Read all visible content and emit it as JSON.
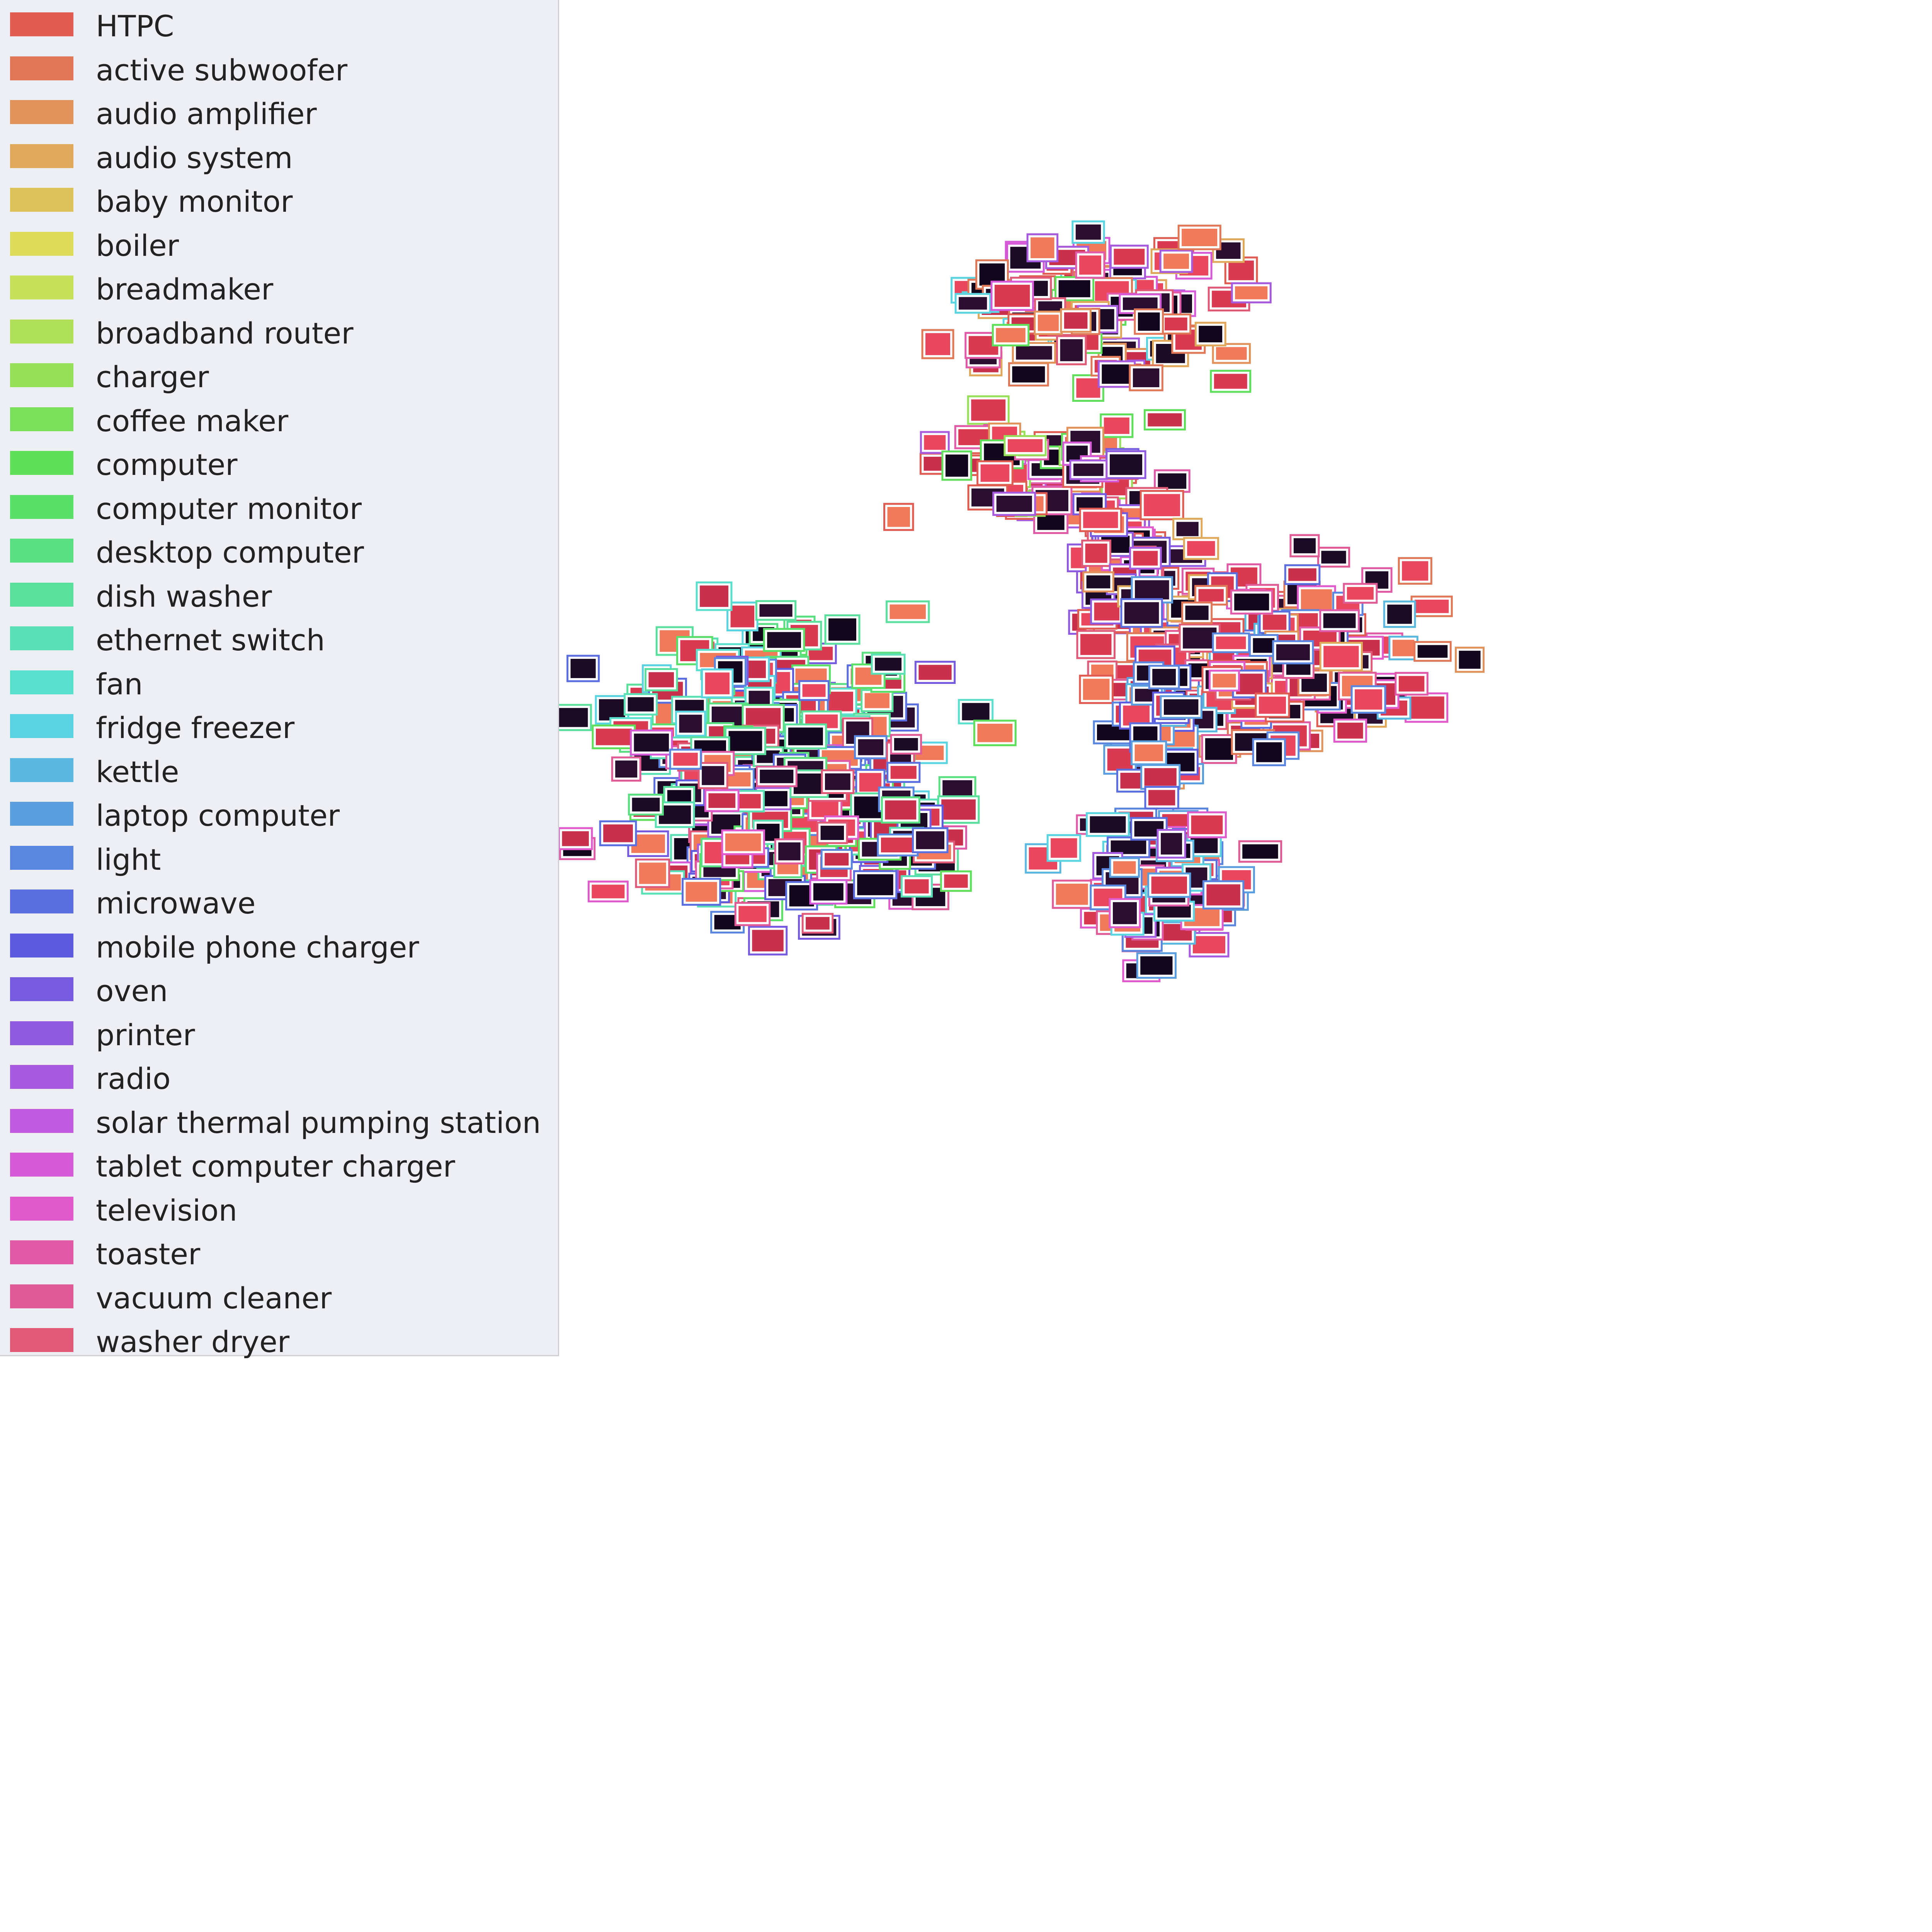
{
  "chart_data": {
    "type": "scatter",
    "title": "",
    "xlabel": "",
    "ylabel": "",
    "marker": "image-thumbnail",
    "legend_position": "upper-left",
    "grid": false,
    "xlim": [
      0,
      100
    ],
    "ylim": [
      0,
      100
    ],
    "legend": [
      {
        "label": "HTPC",
        "color": "#e05c52"
      },
      {
        "label": "active subwoofer",
        "color": "#e07858"
      },
      {
        "label": "audio amplifier",
        "color": "#e0925a"
      },
      {
        "label": "audio system",
        "color": "#e0a85a"
      },
      {
        "label": "baby monitor",
        "color": "#dcc25a"
      },
      {
        "label": "boiler",
        "color": "#dcdc5a"
      },
      {
        "label": "breadmaker",
        "color": "#c8e05a"
      },
      {
        "label": "broadband router",
        "color": "#b0e05a"
      },
      {
        "label": "charger",
        "color": "#96e05a"
      },
      {
        "label": "coffee maker",
        "color": "#7ae05a"
      },
      {
        "label": "computer",
        "color": "#60e05a"
      },
      {
        "label": "computer monitor",
        "color": "#5ae068"
      },
      {
        "label": "desktop computer",
        "color": "#5ae082"
      },
      {
        "label": "dish washer",
        "color": "#5ae09c"
      },
      {
        "label": "ethernet switch",
        "color": "#5ae0b4"
      },
      {
        "label": "fan",
        "color": "#5ae0cc"
      },
      {
        "label": "fridge freezer",
        "color": "#5ad4e0"
      },
      {
        "label": "kettle",
        "color": "#5ab8e0"
      },
      {
        "label": "laptop computer",
        "color": "#5a9ee0"
      },
      {
        "label": "light",
        "color": "#5a86e0"
      },
      {
        "label": "microwave",
        "color": "#5a6ee0"
      },
      {
        "label": "mobile phone charger",
        "color": "#5e5ae0"
      },
      {
        "label": "oven",
        "color": "#765ae0"
      },
      {
        "label": "printer",
        "color": "#8e5ae0"
      },
      {
        "label": "radio",
        "color": "#a65ae0"
      },
      {
        "label": "solar thermal pumping station",
        "color": "#c05ae0"
      },
      {
        "label": "tablet computer charger",
        "color": "#d65ad8"
      },
      {
        "label": "television",
        "color": "#e05acc"
      },
      {
        "label": "toaster",
        "color": "#e05aa8"
      },
      {
        "label": "vacuum cleaner",
        "color": "#e05a96"
      },
      {
        "label": "washer dryer",
        "color": "#e05a78"
      }
    ],
    "clusters": [
      {
        "center": [
          57,
          16
        ],
        "spread": [
          6,
          3.5
        ],
        "count": 120,
        "classes": [
          0,
          1,
          2,
          3,
          10,
          16,
          24,
          26,
          28,
          30
        ]
      },
      {
        "center": [
          54,
          24.5
        ],
        "spread": [
          5,
          2.5
        ],
        "count": 60,
        "classes": [
          0,
          2,
          8,
          10,
          24,
          26,
          28
        ]
      },
      {
        "center": [
          58,
          29
        ],
        "spread": [
          2.5,
          3.5
        ],
        "count": 70,
        "classes": [
          0,
          22,
          23,
          24,
          27,
          30
        ]
      },
      {
        "center": [
          66,
          34
        ],
        "spread": [
          7,
          4
        ],
        "count": 170,
        "classes": [
          0,
          1,
          2,
          3,
          17,
          19,
          20,
          27,
          28,
          29,
          30
        ]
      },
      {
        "center": [
          40,
          37
        ],
        "spread": [
          7,
          4
        ],
        "count": 170,
        "classes": [
          11,
          12,
          13,
          14,
          15,
          16,
          19,
          20,
          21,
          22
        ]
      },
      {
        "center": [
          20,
          40.5
        ],
        "spread": [
          4,
          0.8
        ],
        "count": 18,
        "classes": [
          24,
          25,
          26
        ]
      },
      {
        "center": [
          41,
          42.5
        ],
        "spread": [
          8,
          4
        ],
        "count": 230,
        "classes": [
          10,
          11,
          12,
          13,
          14,
          19,
          20,
          21,
          22,
          24,
          26,
          27,
          28,
          29,
          30
        ]
      },
      {
        "center": [
          60,
          37
        ],
        "spread": [
          2,
          4
        ],
        "count": 45,
        "classes": [
          17,
          18,
          19,
          20,
          21
        ]
      },
      {
        "center": [
          60,
          46
        ],
        "spread": [
          3.5,
          3
        ],
        "count": 100,
        "classes": [
          16,
          17,
          18,
          19,
          20,
          24,
          27,
          28,
          29
        ]
      }
    ]
  }
}
